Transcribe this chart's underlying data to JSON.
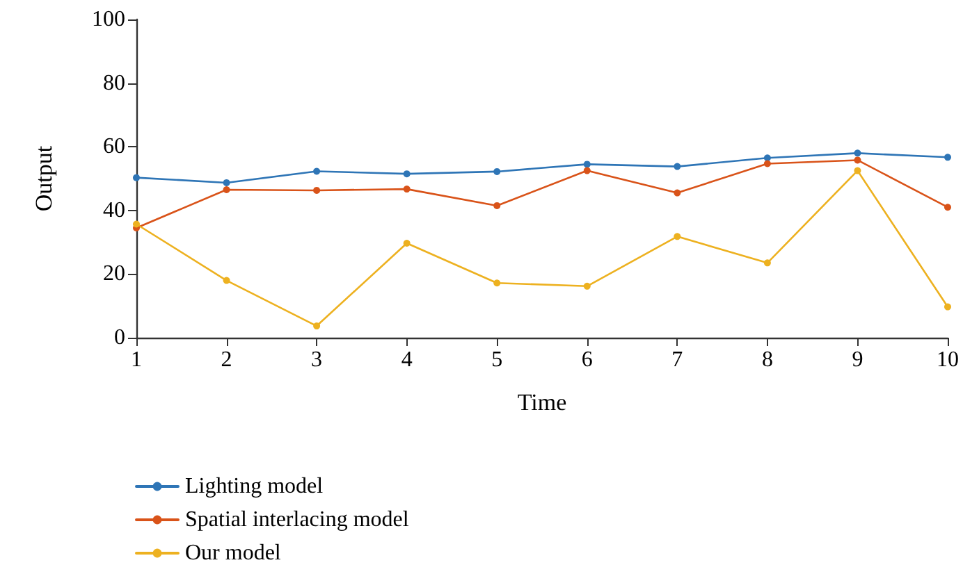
{
  "chart_data": {
    "type": "line",
    "xlabel": "Time",
    "ylabel": "Output",
    "x": [
      1,
      2,
      3,
      4,
      5,
      6,
      7,
      8,
      9,
      10
    ],
    "xlim": [
      1,
      10
    ],
    "xticks": [
      1,
      2,
      3,
      4,
      5,
      6,
      7,
      8,
      9,
      10
    ],
    "ylim": [
      0,
      100
    ],
    "yticks": [
      0,
      20,
      40,
      60,
      80,
      100
    ],
    "series": [
      {
        "name": "Lighting model",
        "color": "#2e75b6",
        "values": [
          50.3,
          48.7,
          52.3,
          51.5,
          52.2,
          54.5,
          53.8,
          56.5,
          58,
          56.7
        ]
      },
      {
        "name": "Spatial interlacing model",
        "color": "#d95319",
        "values": [
          34.5,
          46.5,
          46.3,
          46.7,
          41.5,
          52.5,
          45.5,
          54.7,
          55.8,
          41
        ]
      },
      {
        "name": "Our model",
        "color": "#edb120",
        "values": [
          35.7,
          18,
          3.7,
          29.7,
          17.2,
          16.2,
          31.8,
          23.5,
          52.5,
          9.7
        ]
      }
    ],
    "grid": false,
    "legend": "bottom left",
    "marker": "circle",
    "line_style": "solid"
  }
}
